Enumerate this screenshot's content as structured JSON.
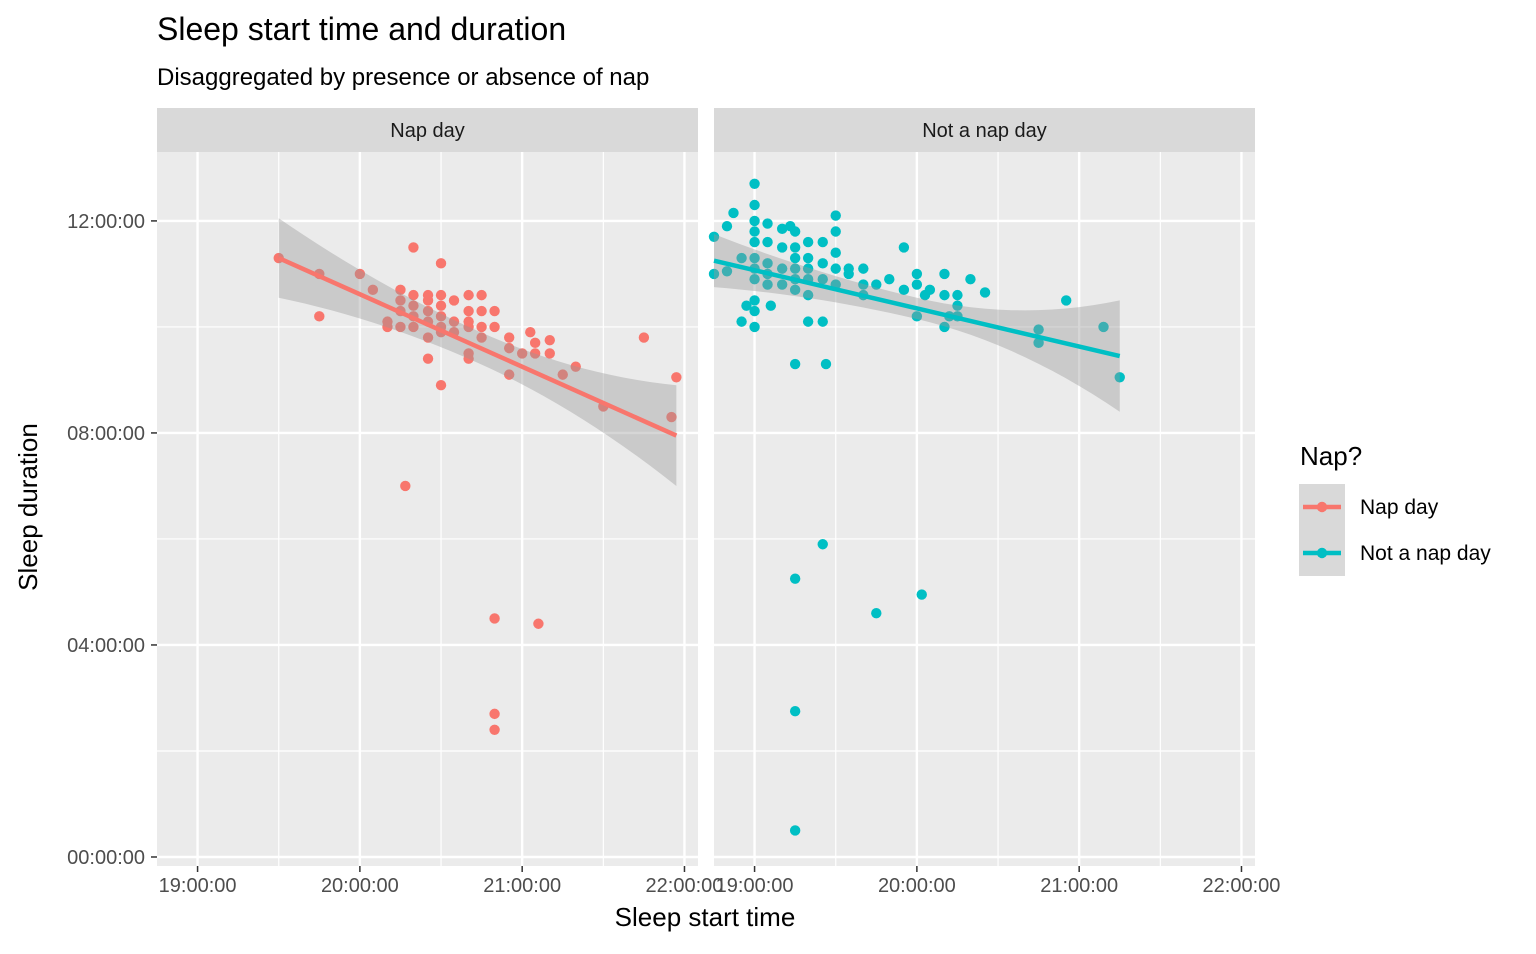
{
  "chart_data": {
    "type": "scatter",
    "title": "Sleep start time and duration",
    "subtitle": "Disaggregated by presence or absence of nap",
    "xlabel": "Sleep start time",
    "ylabel": "Sleep duration",
    "legend": {
      "title": "Nap?",
      "placement": "right",
      "entries": [
        {
          "label": "Nap day",
          "color": "#F8766D"
        },
        {
          "label": "Not a nap day",
          "color": "#00BFC4"
        }
      ]
    },
    "x_ticks": [
      "19:00:00",
      "20:00:00",
      "21:00:00",
      "22:00:00"
    ],
    "y_ticks": [
      "00:00:00",
      "04:00:00",
      "08:00:00",
      "12:00:00"
    ],
    "xlim": [
      "18:45",
      "22:05"
    ],
    "ylim": [
      "-0.17",
      "13.3"
    ],
    "x_unit": "hours since 00:00 (sleep start time)",
    "y_unit": "hours (sleep duration)",
    "grid": true,
    "smooth": "linear fit with confidence band",
    "facets": [
      {
        "label": "Nap day",
        "color": "#F8766D",
        "fit": {
          "x": [
            19.5,
            21.95
          ],
          "y": [
            11.3,
            7.95
          ],
          "band_halfwidth": [
            0.75,
            0.95
          ],
          "band_mid_halfwidth": 0.3
        },
        "points": [
          [
            19.5,
            11.3
          ],
          [
            19.75,
            11.0
          ],
          [
            19.75,
            10.2
          ],
          [
            20.0,
            11.0
          ],
          [
            20.08,
            10.7
          ],
          [
            20.17,
            10.1
          ],
          [
            20.17,
            10.0
          ],
          [
            20.25,
            10.7
          ],
          [
            20.25,
            10.5
          ],
          [
            20.25,
            10.3
          ],
          [
            20.25,
            10.0
          ],
          [
            20.28,
            7.0
          ],
          [
            20.33,
            11.5
          ],
          [
            20.33,
            10.6
          ],
          [
            20.33,
            10.4
          ],
          [
            20.33,
            10.2
          ],
          [
            20.33,
            10.0
          ],
          [
            20.42,
            10.6
          ],
          [
            20.42,
            10.5
          ],
          [
            20.42,
            10.3
          ],
          [
            20.42,
            10.1
          ],
          [
            20.42,
            9.8
          ],
          [
            20.42,
            9.4
          ],
          [
            20.5,
            11.2
          ],
          [
            20.5,
            10.6
          ],
          [
            20.5,
            10.4
          ],
          [
            20.5,
            10.2
          ],
          [
            20.5,
            10.0
          ],
          [
            20.5,
            9.9
          ],
          [
            20.5,
            8.9
          ],
          [
            20.58,
            10.5
          ],
          [
            20.58,
            10.1
          ],
          [
            20.58,
            9.9
          ],
          [
            20.67,
            10.6
          ],
          [
            20.67,
            10.3
          ],
          [
            20.67,
            10.1
          ],
          [
            20.67,
            10.0
          ],
          [
            20.67,
            9.5
          ],
          [
            20.67,
            9.4
          ],
          [
            20.75,
            10.6
          ],
          [
            20.75,
            10.3
          ],
          [
            20.75,
            10.0
          ],
          [
            20.75,
            9.8
          ],
          [
            20.83,
            10.3
          ],
          [
            20.83,
            10.0
          ],
          [
            20.83,
            4.5
          ],
          [
            20.83,
            2.7
          ],
          [
            20.83,
            2.4
          ],
          [
            20.92,
            9.8
          ],
          [
            20.92,
            9.6
          ],
          [
            20.92,
            9.1
          ],
          [
            21.0,
            9.5
          ],
          [
            21.05,
            9.9
          ],
          [
            21.08,
            9.7
          ],
          [
            21.08,
            9.5
          ],
          [
            21.1,
            4.4
          ],
          [
            21.17,
            9.75
          ],
          [
            21.17,
            9.5
          ],
          [
            21.25,
            9.1
          ],
          [
            21.33,
            9.25
          ],
          [
            21.5,
            8.5
          ],
          [
            21.75,
            9.8
          ],
          [
            21.92,
            8.3
          ],
          [
            21.95,
            9.05
          ]
        ]
      },
      {
        "label": "Not a nap day",
        "color": "#00BFC4",
        "fit": {
          "x": [
            18.75,
            21.25
          ],
          "y": [
            11.25,
            9.45
          ],
          "band_halfwidth": [
            0.5,
            1.05
          ],
          "band_mid_halfwidth": 0.2
        },
        "points": [
          [
            18.75,
            11.7
          ],
          [
            18.75,
            11.0
          ],
          [
            18.83,
            11.05
          ],
          [
            18.83,
            11.9
          ],
          [
            18.87,
            12.15
          ],
          [
            18.92,
            11.3
          ],
          [
            18.92,
            10.1
          ],
          [
            18.95,
            10.4
          ],
          [
            19.0,
            12.7
          ],
          [
            19.0,
            12.3
          ],
          [
            19.0,
            12.0
          ],
          [
            19.0,
            11.8
          ],
          [
            19.0,
            11.6
          ],
          [
            19.0,
            11.3
          ],
          [
            19.0,
            11.1
          ],
          [
            19.0,
            10.9
          ],
          [
            19.0,
            10.5
          ],
          [
            19.0,
            10.3
          ],
          [
            19.0,
            10.0
          ],
          [
            19.08,
            11.95
          ],
          [
            19.08,
            11.6
          ],
          [
            19.08,
            11.2
          ],
          [
            19.08,
            11.0
          ],
          [
            19.08,
            10.8
          ],
          [
            19.1,
            10.4
          ],
          [
            19.17,
            11.85
          ],
          [
            19.17,
            11.5
          ],
          [
            19.17,
            11.1
          ],
          [
            19.17,
            10.8
          ],
          [
            19.22,
            11.9
          ],
          [
            19.25,
            11.8
          ],
          [
            19.25,
            11.5
          ],
          [
            19.25,
            11.3
          ],
          [
            19.25,
            11.1
          ],
          [
            19.25,
            10.9
          ],
          [
            19.25,
            10.7
          ],
          [
            19.25,
            9.3
          ],
          [
            19.25,
            5.25
          ],
          [
            19.25,
            2.75
          ],
          [
            19.25,
            0.5
          ],
          [
            19.33,
            11.6
          ],
          [
            19.33,
            11.3
          ],
          [
            19.33,
            11.1
          ],
          [
            19.33,
            10.9
          ],
          [
            19.33,
            10.6
          ],
          [
            19.33,
            10.1
          ],
          [
            19.42,
            11.6
          ],
          [
            19.42,
            11.2
          ],
          [
            19.42,
            10.9
          ],
          [
            19.42,
            10.1
          ],
          [
            19.42,
            5.9
          ],
          [
            19.44,
            9.3
          ],
          [
            19.5,
            12.1
          ],
          [
            19.5,
            11.8
          ],
          [
            19.5,
            11.4
          ],
          [
            19.5,
            11.1
          ],
          [
            19.5,
            10.8
          ],
          [
            19.58,
            11.1
          ],
          [
            19.58,
            11.0
          ],
          [
            19.67,
            11.1
          ],
          [
            19.67,
            10.8
          ],
          [
            19.67,
            10.6
          ],
          [
            19.75,
            10.8
          ],
          [
            19.75,
            4.6
          ],
          [
            19.83,
            10.9
          ],
          [
            19.92,
            11.5
          ],
          [
            19.92,
            10.7
          ],
          [
            20.0,
            11.0
          ],
          [
            20.0,
            10.8
          ],
          [
            20.0,
            10.2
          ],
          [
            20.03,
            4.95
          ],
          [
            20.05,
            10.6
          ],
          [
            20.08,
            10.7
          ],
          [
            20.17,
            11.0
          ],
          [
            20.17,
            10.6
          ],
          [
            20.17,
            10.0
          ],
          [
            20.2,
            10.2
          ],
          [
            20.25,
            10.6
          ],
          [
            20.25,
            10.4
          ],
          [
            20.25,
            10.2
          ],
          [
            20.33,
            10.9
          ],
          [
            20.42,
            10.65
          ],
          [
            20.75,
            9.95
          ],
          [
            20.75,
            9.7
          ],
          [
            20.92,
            10.5
          ],
          [
            21.15,
            10.0
          ],
          [
            21.25,
            9.05
          ]
        ]
      }
    ]
  }
}
